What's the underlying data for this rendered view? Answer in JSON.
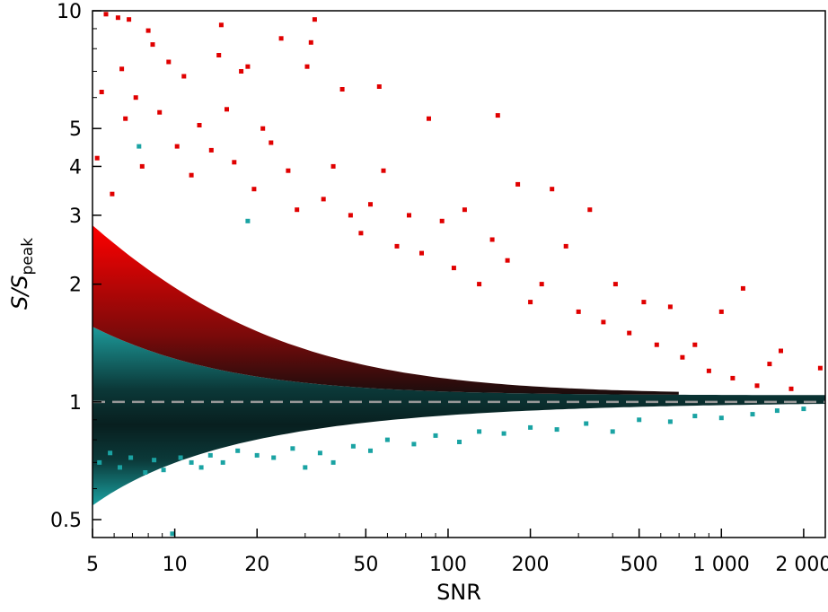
{
  "chart_data": {
    "type": "scatter",
    "title": "",
    "xlabel": "SNR",
    "ylabel_main": "S/S",
    "ylabel_sub": "peak",
    "x_scale": "log",
    "y_scale": "log",
    "xlim": [
      5,
      2400
    ],
    "ylim": [
      0.45,
      10
    ],
    "x_ticks": [
      {
        "value": 5,
        "label": "5"
      },
      {
        "value": 10,
        "label": "10"
      },
      {
        "value": 20,
        "label": "20"
      },
      {
        "value": 50,
        "label": "50"
      },
      {
        "value": 100,
        "label": "100"
      },
      {
        "value": 200,
        "label": "200"
      },
      {
        "value": 500,
        "label": "500"
      },
      {
        "value": 1000,
        "label": "1 000"
      },
      {
        "value": 2000,
        "label": "2 000"
      }
    ],
    "y_ticks": [
      {
        "value": 0.5,
        "label": "0.5"
      },
      {
        "value": 1,
        "label": "1"
      },
      {
        "value": 2,
        "label": "2"
      },
      {
        "value": 3,
        "label": "3"
      },
      {
        "value": 4,
        "label": "4"
      },
      {
        "value": 5,
        "label": "5"
      },
      {
        "value": 10,
        "label": "10"
      }
    ],
    "reference_line": {
      "y": 1,
      "style": "dashed",
      "color": "#999999"
    },
    "grid": false,
    "series": [
      {
        "color": "#e00000",
        "points": [
          [
            5.2,
            4.2
          ],
          [
            5.4,
            6.2
          ],
          [
            5.6,
            9.8
          ],
          [
            5.9,
            3.4
          ],
          [
            6.2,
            9.6
          ],
          [
            6.4,
            7.1
          ],
          [
            6.6,
            5.3
          ],
          [
            6.8,
            9.5
          ],
          [
            7.2,
            6.0
          ],
          [
            7.6,
            4.0
          ],
          [
            8.0,
            8.9
          ],
          [
            8.3,
            8.2
          ],
          [
            8.8,
            5.5
          ],
          [
            9.5,
            7.4
          ],
          [
            10.2,
            4.5
          ],
          [
            10.8,
            6.8
          ],
          [
            11.5,
            3.8
          ],
          [
            12.3,
            5.1
          ],
          [
            13.6,
            4.4
          ],
          [
            14.5,
            7.7
          ],
          [
            14.8,
            9.2
          ],
          [
            15.5,
            5.6
          ],
          [
            16.5,
            4.1
          ],
          [
            17.5,
            7.0
          ],
          [
            18.5,
            7.2
          ],
          [
            19.5,
            3.5
          ],
          [
            21.0,
            5.0
          ],
          [
            22.5,
            4.6
          ],
          [
            24.5,
            8.5
          ],
          [
            26.0,
            3.9
          ],
          [
            28.0,
            3.1
          ],
          [
            30.5,
            7.2
          ],
          [
            31.5,
            8.3
          ],
          [
            32.5,
            9.5
          ],
          [
            35.0,
            3.3
          ],
          [
            38.0,
            4.0
          ],
          [
            41.0,
            6.3
          ],
          [
            44.0,
            3.0
          ],
          [
            48.0,
            2.7
          ],
          [
            52.0,
            3.2
          ],
          [
            56.0,
            6.4
          ],
          [
            58.0,
            3.9
          ],
          [
            65.0,
            2.5
          ],
          [
            72.0,
            3.0
          ],
          [
            80.0,
            2.4
          ],
          [
            85.0,
            5.3
          ],
          [
            95.0,
            2.9
          ],
          [
            105.0,
            2.2
          ],
          [
            115.0,
            3.1
          ],
          [
            130.0,
            2.0
          ],
          [
            145.0,
            2.6
          ],
          [
            152.0,
            5.4
          ],
          [
            165.0,
            2.3
          ],
          [
            180.0,
            3.6
          ],
          [
            200.0,
            1.8
          ],
          [
            220.0,
            2.0
          ],
          [
            240.0,
            3.5
          ],
          [
            270.0,
            2.5
          ],
          [
            300.0,
            1.7
          ],
          [
            330.0,
            3.1
          ],
          [
            370.0,
            1.6
          ],
          [
            410.0,
            2.0
          ],
          [
            460.0,
            1.5
          ],
          [
            520.0,
            1.8
          ],
          [
            580.0,
            1.4
          ],
          [
            650.0,
            1.75
          ],
          [
            720.0,
            1.3
          ],
          [
            800.0,
            1.4
          ],
          [
            900.0,
            1.2
          ],
          [
            1000.0,
            1.7
          ],
          [
            1100.0,
            1.15
          ],
          [
            1200.0,
            1.95
          ],
          [
            1350.0,
            1.1
          ],
          [
            1500.0,
            1.25
          ],
          [
            1650.0,
            1.35
          ],
          [
            1800.0,
            1.08
          ],
          [
            2300.0,
            1.22
          ]
        ]
      },
      {
        "color": "#1aa3a3",
        "points": [
          [
            5.3,
            0.7
          ],
          [
            5.8,
            0.74
          ],
          [
            6.3,
            0.68
          ],
          [
            6.9,
            0.72
          ],
          [
            7.4,
            4.5
          ],
          [
            7.8,
            0.66
          ],
          [
            8.4,
            0.71
          ],
          [
            9.1,
            0.67
          ],
          [
            9.8,
            0.46
          ],
          [
            10.5,
            0.72
          ],
          [
            11.5,
            0.7
          ],
          [
            12.5,
            0.68
          ],
          [
            13.5,
            0.73
          ],
          [
            15.0,
            0.7
          ],
          [
            17.0,
            0.75
          ],
          [
            18.5,
            2.9
          ],
          [
            20.0,
            0.73
          ],
          [
            23.0,
            0.72
          ],
          [
            27.0,
            0.76
          ],
          [
            30.0,
            0.68
          ],
          [
            34.0,
            0.74
          ],
          [
            38.0,
            0.7
          ],
          [
            45.0,
            0.77
          ],
          [
            52.0,
            0.75
          ],
          [
            60.0,
            0.8
          ],
          [
            75.0,
            0.78
          ],
          [
            90.0,
            0.82
          ],
          [
            110.0,
            0.79
          ],
          [
            130.0,
            0.84
          ],
          [
            160.0,
            0.83
          ],
          [
            200.0,
            0.86
          ],
          [
            250.0,
            0.85
          ],
          [
            320.0,
            0.88
          ],
          [
            400.0,
            0.84
          ],
          [
            500.0,
            0.9
          ],
          [
            650.0,
            0.89
          ],
          [
            800.0,
            0.92
          ],
          [
            1000.0,
            0.91
          ],
          [
            1300.0,
            0.93
          ],
          [
            1600.0,
            0.95
          ],
          [
            2000.0,
            0.96
          ]
        ]
      }
    ],
    "dense_regions": [
      {
        "series": "red",
        "x_range": [
          5,
          700
        ],
        "description_only": true
      },
      {
        "series": "teal",
        "x_range": [
          5,
          2400
        ],
        "description_only": true
      }
    ]
  }
}
